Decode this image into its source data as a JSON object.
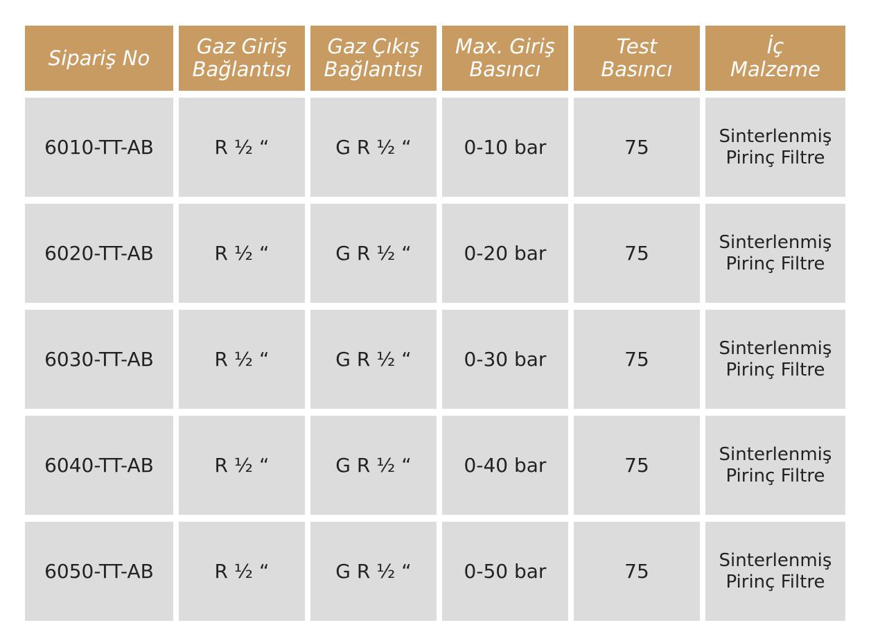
{
  "table": {
    "headers": [
      "Sipariş No",
      "Gaz Giriş\nBağlantısı",
      "Gaz Çıkış\nBağlantısı",
      "Max. Giriş\nBasıncı",
      "Test\nBasıncı",
      "İç\nMalzeme"
    ],
    "rows": [
      [
        "6010-TT-AB",
        "R ½ “",
        "G R ½ “",
        "0-10 bar",
        "75",
        "Sinterlenmiş\nPirinç Filtre"
      ],
      [
        "6020-TT-AB",
        "R ½ “",
        "G R ½ “",
        "0-20 bar",
        "75",
        "Sinterlenmiş\nPirinç Filtre"
      ],
      [
        "6030-TT-AB",
        "R ½ “",
        "G R ½ “",
        "0-30 bar",
        "75",
        "Sinterlenmiş\nPirinç Filtre"
      ],
      [
        "6040-TT-AB",
        "R ½ “",
        "G R ½ “",
        "0-40 bar",
        "75",
        "Sinterlenmiş\nPirinç Filtre"
      ],
      [
        "6050-TT-AB",
        "R ½ “",
        "G R ½ “",
        "0-50 bar",
        "75",
        "Sinterlenmiş\nPirinç Filtre"
      ]
    ]
  },
  "colors": {
    "header_bg": "#c89b62",
    "cell_bg": "#dcdcdc",
    "text": "#222222"
  }
}
